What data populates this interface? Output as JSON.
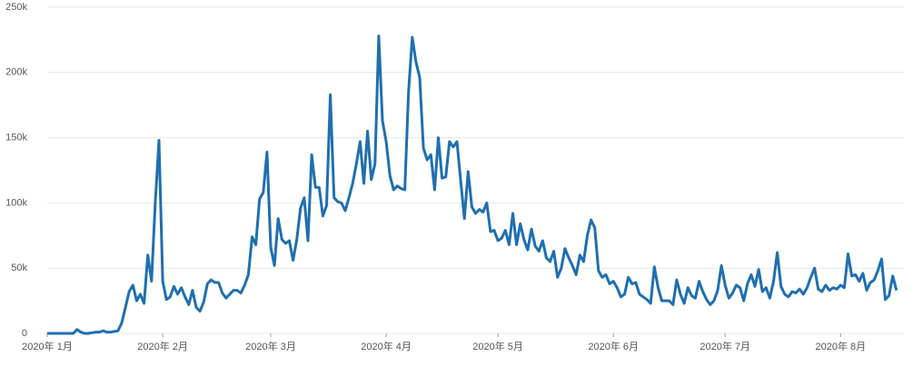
{
  "chart_data": {
    "type": "line",
    "color": "#1f6fb0",
    "grid": true,
    "xlim": [
      0,
      230
    ],
    "xticks": [
      {
        "value": 0,
        "label": "2020年 1月"
      },
      {
        "value": 31,
        "label": "2020年 2月"
      },
      {
        "value": 60,
        "label": "2020年 3月"
      },
      {
        "value": 91,
        "label": "2020年 4月"
      },
      {
        "value": 121,
        "label": "2020年 5月"
      },
      {
        "value": 152,
        "label": "2020年 6月"
      },
      {
        "value": 182,
        "label": "2020年 7月"
      },
      {
        "value": 213,
        "label": "2020年 8月"
      }
    ],
    "ylim": [
      0,
      250000
    ],
    "yticks": [
      0,
      {
        "value": 50000,
        "label": "50k"
      },
      {
        "value": 100000,
        "label": "100k"
      },
      {
        "value": 150000,
        "label": "150k"
      },
      {
        "value": 200000,
        "label": "200k"
      },
      {
        "value": 250000,
        "label": "250k"
      }
    ],
    "x": [
      0,
      1,
      2,
      3,
      4,
      5,
      6,
      7,
      8,
      9,
      10,
      11,
      12,
      13,
      14,
      15,
      16,
      17,
      18,
      19,
      20,
      21,
      22,
      23,
      24,
      25,
      26,
      27,
      28,
      29,
      30,
      31,
      32,
      33,
      34,
      35,
      36,
      37,
      38,
      39,
      40,
      41,
      42,
      43,
      44,
      45,
      46,
      47,
      48,
      49,
      50,
      51,
      52,
      53,
      54,
      55,
      56,
      57,
      58,
      59,
      60,
      61,
      62,
      63,
      64,
      65,
      66,
      67,
      68,
      69,
      70,
      71,
      72,
      73,
      74,
      75,
      76,
      77,
      78,
      79,
      80,
      81,
      82,
      83,
      84,
      85,
      86,
      87,
      88,
      89,
      90,
      91,
      92,
      93,
      94,
      95,
      96,
      97,
      98,
      99,
      100,
      101,
      102,
      103,
      104,
      105,
      106,
      107,
      108,
      109,
      110,
      111,
      112,
      113,
      114,
      115,
      116,
      117,
      118,
      119,
      120,
      121,
      122,
      123,
      124,
      125,
      126,
      127,
      128,
      129,
      130,
      131,
      132,
      133,
      134,
      135,
      136,
      137,
      138,
      139,
      140,
      141,
      142,
      143,
      144,
      145,
      146,
      147,
      148,
      149,
      150,
      151,
      152,
      153,
      154,
      155,
      156,
      157,
      158,
      159,
      160,
      161,
      162,
      163,
      164,
      165,
      166,
      167,
      168,
      169,
      170,
      171,
      172,
      173,
      174,
      175,
      176,
      177,
      178,
      179,
      180,
      181,
      182,
      183,
      184,
      185,
      186,
      187,
      188,
      189,
      190,
      191,
      192,
      193,
      194,
      195,
      196,
      197,
      198,
      199,
      200,
      201,
      202,
      203,
      204,
      205,
      206,
      207,
      208,
      209,
      210,
      211,
      212,
      213,
      214,
      215,
      216,
      217,
      218,
      219,
      220,
      221,
      222,
      223,
      224,
      225,
      226,
      227,
      228
    ],
    "values": [
      0,
      0,
      0,
      0,
      0,
      0,
      0,
      0,
      3000,
      1000,
      0,
      0,
      500,
      1000,
      1000,
      2000,
      1000,
      1000,
      1500,
      2000,
      8000,
      20000,
      32000,
      37000,
      25000,
      30000,
      23000,
      60000,
      40000,
      100000,
      148000,
      40000,
      26000,
      28000,
      36000,
      30000,
      35000,
      28000,
      22000,
      33000,
      20000,
      17000,
      24000,
      38000,
      41000,
      39000,
      39000,
      31000,
      27000,
      30000,
      33000,
      33000,
      31000,
      37000,
      45000,
      74000,
      68000,
      103000,
      108000,
      139000,
      66000,
      52000,
      88000,
      72000,
      69000,
      71000,
      56000,
      72000,
      96000,
      104000,
      71000,
      137000,
      112000,
      112000,
      90000,
      98000,
      183000,
      104000,
      101000,
      100000,
      94000,
      104000,
      115000,
      130000,
      147000,
      115000,
      155000,
      118000,
      130000,
      228000,
      163000,
      147000,
      121000,
      110000,
      113000,
      111000,
      110000,
      185000,
      227000,
      208000,
      196000,
      142000,
      133000,
      137000,
      110000,
      150000,
      119000,
      120000,
      147000,
      143000,
      147000,
      117000,
      88000,
      124000,
      97000,
      92000,
      95000,
      93000,
      100000,
      78000,
      79000,
      71000,
      73000,
      79000,
      68000,
      92000,
      68000,
      84000,
      72000,
      64000,
      80000,
      67000,
      63000,
      71000,
      58000,
      55000,
      63000,
      43000,
      50000,
      65000,
      58000,
      52000,
      45000,
      60000,
      55000,
      75000,
      87000,
      81000,
      48000,
      43000,
      45000,
      38000,
      40000,
      35000,
      28000,
      30000,
      43000,
      38000,
      39000,
      30000,
      28000,
      26000,
      23000,
      51000,
      35000,
      25000,
      25000,
      25000,
      22000,
      41000,
      30000,
      23000,
      35000,
      29000,
      27000,
      40000,
      32000,
      26000,
      22000,
      25000,
      33000,
      52000,
      37000,
      27000,
      31000,
      37000,
      35000,
      25000,
      38000,
      45000,
      36000,
      49000,
      32000,
      35000,
      27000,
      40000,
      62000,
      36000,
      30000,
      28000,
      32000,
      31000,
      34000,
      30000,
      35000,
      43000,
      50000,
      34000,
      32000,
      37000,
      33000,
      35000,
      34000,
      37000,
      35000,
      61000,
      44000,
      45000,
      40000,
      46000,
      33000,
      39000,
      41000,
      48000,
      57000,
      26000,
      29000,
      44000,
      33000
    ]
  }
}
